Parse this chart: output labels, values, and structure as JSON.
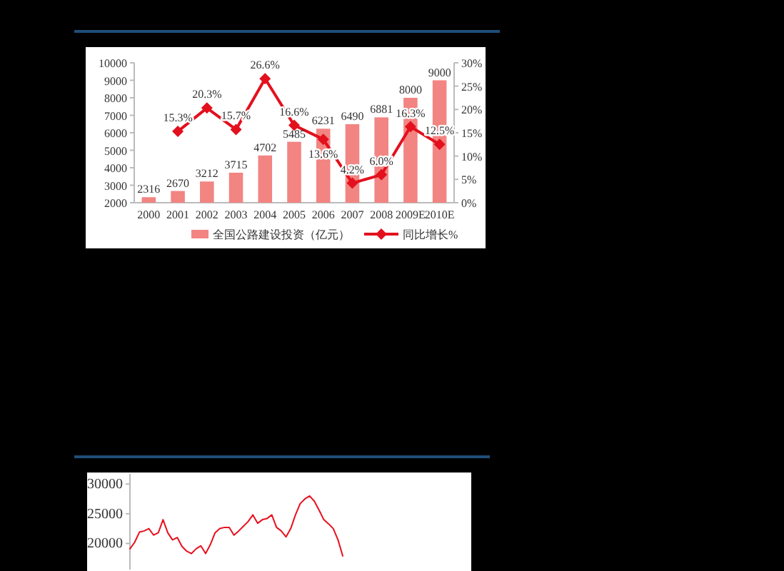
{
  "chart_data": [
    {
      "type": "bar",
      "categories": [
        "2000",
        "2001",
        "2002",
        "2003",
        "2004",
        "2005",
        "2006",
        "2007",
        "2008",
        "2009E",
        "2010E"
      ],
      "series": [
        {
          "name": "全国公路建设投资（亿元）",
          "type": "bar",
          "color": "#f28482",
          "values": [
            2316,
            2670,
            3212,
            3715,
            4702,
            5485,
            6231,
            6490,
            6881,
            8000,
            9000
          ],
          "value_labels": [
            "2316",
            "2670",
            "3212",
            "3715",
            "4702",
            "5485",
            "6231",
            "6490",
            "6881",
            "8000",
            "9000"
          ]
        },
        {
          "name": "同比增长%",
          "type": "line",
          "axis": "y2",
          "marker": "diamond",
          "color": "#e3101e",
          "values": [
            null,
            15.3,
            20.3,
            15.7,
            26.6,
            16.6,
            13.6,
            4.2,
            6.0,
            16.3,
            12.5
          ],
          "value_labels": [
            null,
            "15.3%",
            "20.3%",
            "15.7%",
            "26.6%",
            "16.6%",
            "13.6%",
            "4.2%",
            "6.0%",
            "16.3%",
            "12.5%"
          ]
        }
      ],
      "ylim": [
        2000,
        10000
      ],
      "yticks": [
        2000,
        3000,
        4000,
        5000,
        6000,
        7000,
        8000,
        9000,
        10000
      ],
      "y2lim": [
        0,
        30
      ],
      "y2ticks": [
        {
          "value": 0,
          "label": "0%"
        },
        {
          "value": 5,
          "label": "5%"
        },
        {
          "value": 10,
          "label": "10%"
        },
        {
          "value": 15,
          "label": "15%"
        },
        {
          "value": 20,
          "label": "20%"
        },
        {
          "value": 25,
          "label": "25%"
        },
        {
          "value": 30,
          "label": "30%"
        }
      ],
      "legend": "bottom"
    },
    {
      "type": "line",
      "categories": [
        null,
        null,
        null,
        null,
        null,
        null,
        null,
        null,
        null,
        null,
        null,
        null,
        null,
        null,
        null,
        null,
        null,
        null,
        null,
        null,
        null,
        null,
        null,
        null,
        null,
        null,
        null,
        null,
        null,
        null,
        null,
        null,
        null,
        null,
        null,
        null,
        null,
        null,
        null,
        null,
        null,
        null,
        null,
        null,
        null,
        null
      ],
      "series": [
        {
          "color": "#e8101e",
          "values": [
            19100,
            20200,
            21900,
            22100,
            22500,
            21400,
            21800,
            24000,
            21800,
            20600,
            21000,
            19500,
            18700,
            18300,
            19100,
            19600,
            18300,
            19800,
            21800,
            22500,
            22700,
            22700,
            21400,
            22100,
            22900,
            23700,
            24800,
            23400,
            24000,
            24200,
            24800,
            22700,
            22100,
            21100,
            22500,
            24800,
            26700,
            27500,
            28000,
            27100,
            25600,
            24000,
            23300,
            22500,
            20600,
            17900
          ]
        }
      ],
      "ylim": [
        15600,
        31700
      ],
      "yticks": [
        20000,
        25000,
        30000
      ],
      "tick_labels": "y"
    }
  ]
}
